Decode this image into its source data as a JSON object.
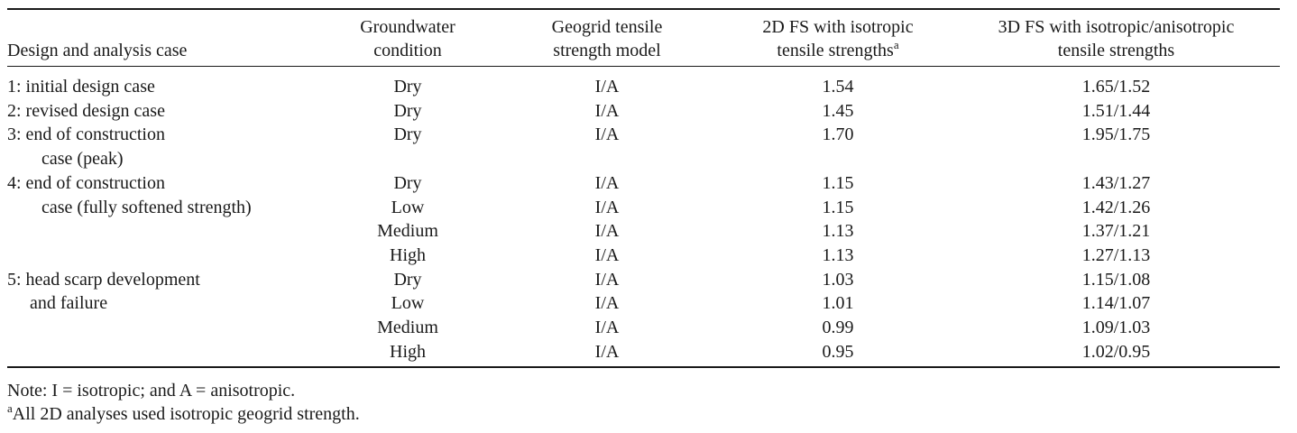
{
  "table": {
    "headers": {
      "case": "Design and analysis case",
      "groundwater": [
        "Groundwater",
        "condition"
      ],
      "geogrid": [
        "Geogrid tensile",
        "strength model"
      ],
      "fs2d": [
        "2D FS with isotropic",
        "tensile strengths"
      ],
      "fs2d_sup": "a",
      "fs3d": [
        "3D FS with isotropic/anisotropic",
        "tensile strengths"
      ]
    },
    "rows": [
      {
        "case": "1: initial design case",
        "case_cont": "",
        "gw": "Dry",
        "model": "I/A",
        "fs2d": "1.54",
        "fs3d": "1.65/1.52"
      },
      {
        "case": "2: revised design case",
        "case_cont": "",
        "gw": "Dry",
        "model": "I/A",
        "fs2d": "1.45",
        "fs3d": "1.51/1.44"
      },
      {
        "case": "3: end of construction",
        "case_cont": "case (peak)",
        "gw": "Dry",
        "model": "I/A",
        "fs2d": "1.70",
        "fs3d": "1.95/1.75"
      },
      {
        "case": "4: end of construction",
        "case_cont": "",
        "gw": "Dry",
        "model": "I/A",
        "fs2d": "1.15",
        "fs3d": "1.43/1.27"
      },
      {
        "case": "case (fully softened strength)",
        "case_cont": "",
        "gw": "Low",
        "model": "I/A",
        "fs2d": "1.15",
        "fs3d": "1.42/1.26"
      },
      {
        "case": "",
        "case_cont": "",
        "gw": "Medium",
        "model": "I/A",
        "fs2d": "1.13",
        "fs3d": "1.37/1.21"
      },
      {
        "case": "",
        "case_cont": "",
        "gw": "High",
        "model": "I/A",
        "fs2d": "1.13",
        "fs3d": "1.27/1.13"
      },
      {
        "case": "5: head scarp development",
        "case_cont": "",
        "gw": "Dry",
        "model": "I/A",
        "fs2d": "1.03",
        "fs3d": "1.15/1.08"
      },
      {
        "case": "and failure",
        "case_cont": "",
        "gw": "Low",
        "model": "I/A",
        "fs2d": "1.01",
        "fs3d": "1.14/1.07"
      },
      {
        "case": "",
        "case_cont": "",
        "gw": "Medium",
        "model": "I/A",
        "fs2d": "0.99",
        "fs3d": "1.09/1.03"
      },
      {
        "case": "",
        "case_cont": "",
        "gw": "High",
        "model": "I/A",
        "fs2d": "0.95",
        "fs3d": "1.02/0.95"
      }
    ]
  },
  "notes": {
    "note": "Note: I = isotropic; and A = anisotropic.",
    "footnote_mark": "a",
    "footnote": "All 2D analyses used isotropic geogrid strength."
  }
}
